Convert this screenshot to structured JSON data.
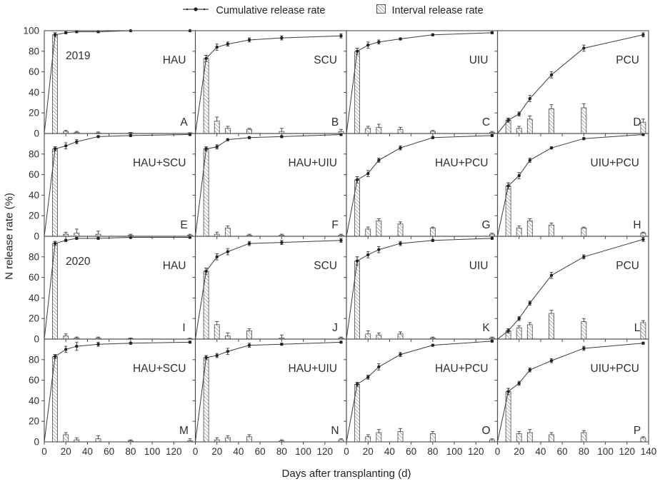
{
  "legend": {
    "cumulative": "Cumulative release rate",
    "interval": "Interval release rate"
  },
  "axes": {
    "ylabel": "N release rate (%)",
    "xlabel": "Days after transplanting (d)",
    "x_range": [
      0,
      140
    ],
    "y_range": [
      0,
      100
    ],
    "x_ticks": [
      0,
      20,
      40,
      60,
      80,
      100,
      120,
      140
    ],
    "y_ticks": [
      0,
      20,
      40,
      60,
      80,
      100
    ],
    "note_x_labels": "140 labeled only under last column; y=100 labeled only on top row",
    "grid": false
  },
  "colors": {
    "line": "#3c3c3c",
    "marker": "#222222",
    "border": "#4a4a4a",
    "hatch": "#555555",
    "text": "#2f2f2f"
  },
  "chart_data": {
    "type": "line+bar small-multiples (4x4 grid)",
    "x": [
      10,
      20,
      30,
      50,
      80,
      135
    ],
    "series_names": [
      "Cumulative release rate",
      "Interval release rate"
    ],
    "panels": [
      {
        "letter": "A",
        "treatment": "HAU",
        "year_label": "2019",
        "cumulative": [
          96,
          98,
          99,
          99,
          100,
          100
        ],
        "interval": [
          96,
          2,
          1,
          0.5,
          0.5,
          0.3
        ],
        "err_cum": [
          2,
          1,
          1,
          1,
          1,
          1
        ],
        "err_int": [
          2,
          1,
          1,
          1,
          0.5,
          0.5
        ]
      },
      {
        "letter": "B",
        "treatment": "SCU",
        "year_label": "",
        "cumulative": [
          73,
          84,
          87,
          91,
          93,
          95
        ],
        "interval": [
          73,
          12,
          5,
          4,
          2,
          2
        ],
        "err_cum": [
          3,
          3,
          2,
          2,
          2,
          2
        ],
        "err_int": [
          3,
          4,
          2,
          1,
          3,
          2
        ]
      },
      {
        "letter": "C",
        "treatment": "UIU",
        "year_label": "",
        "cumulative": [
          80,
          86,
          89,
          92,
          96,
          98
        ],
        "interval": [
          80,
          5,
          6,
          4,
          2,
          1
        ],
        "err_cum": [
          3,
          3,
          2,
          1,
          1,
          1
        ],
        "err_int": [
          3,
          2,
          3,
          2,
          1,
          1
        ]
      },
      {
        "letter": "D",
        "treatment": "PCU",
        "year_label": "",
        "cumulative": [
          13,
          19,
          34,
          57,
          83,
          96
        ],
        "interval": [
          13,
          5,
          14,
          24,
          25,
          11
        ],
        "err_cum": [
          2,
          2,
          3,
          3,
          3,
          2
        ],
        "err_int": [
          2,
          2,
          3,
          4,
          4,
          3
        ]
      },
      {
        "letter": "E",
        "treatment": "HAU+SCU",
        "year_label": "",
        "cumulative": [
          85,
          88,
          92,
          97,
          98,
          99
        ],
        "interval": [
          85,
          2,
          3,
          2,
          1,
          1
        ],
        "err_cum": [
          2,
          3,
          2,
          1,
          1,
          1
        ],
        "err_int": [
          2,
          2,
          4,
          3,
          1,
          1
        ]
      },
      {
        "letter": "F",
        "treatment": "HAU+UIU",
        "year_label": "",
        "cumulative": [
          85,
          87,
          94,
          96,
          97,
          99
        ],
        "interval": [
          85,
          2,
          8,
          1,
          1,
          1
        ],
        "err_cum": [
          2,
          2,
          1,
          1,
          1,
          1
        ],
        "err_int": [
          2,
          2,
          2,
          1,
          1,
          1
        ]
      },
      {
        "letter": "G",
        "treatment": "HAU+PCU",
        "year_label": "",
        "cumulative": [
          55,
          61,
          74,
          86,
          96,
          98
        ],
        "interval": [
          55,
          7,
          15,
          12,
          8,
          2
        ],
        "err_cum": [
          3,
          3,
          2,
          2,
          1,
          1
        ],
        "err_int": [
          3,
          2,
          2,
          2,
          1,
          1
        ]
      },
      {
        "letter": "H",
        "treatment": "UIU+PCU",
        "year_label": "",
        "cumulative": [
          49,
          59,
          74,
          86,
          95,
          99
        ],
        "interval": [
          49,
          8,
          15,
          11,
          8,
          3
        ],
        "err_cum": [
          3,
          3,
          2,
          1,
          1,
          1
        ],
        "err_int": [
          3,
          2,
          2,
          2,
          1,
          1
        ]
      },
      {
        "letter": "I",
        "treatment": "HAU",
        "year_label": "2020",
        "cumulative": [
          93,
          96,
          98,
          98,
          99,
          99
        ],
        "interval": [
          93,
          3,
          1,
          1,
          0.5,
          0.3
        ],
        "err_cum": [
          2,
          1,
          1,
          1,
          1,
          1
        ],
        "err_int": [
          2,
          2,
          1,
          1,
          0.5,
          0.5
        ]
      },
      {
        "letter": "J",
        "treatment": "SCU",
        "year_label": "",
        "cumulative": [
          66,
          80,
          85,
          93,
          94,
          96
        ],
        "interval": [
          66,
          14,
          3,
          8,
          1,
          1
        ],
        "err_cum": [
          3,
          3,
          3,
          2,
          2,
          2
        ],
        "err_int": [
          3,
          3,
          3,
          2,
          3,
          1
        ]
      },
      {
        "letter": "K",
        "treatment": "UIU",
        "year_label": "",
        "cumulative": [
          76,
          82,
          87,
          93,
          96,
          98
        ],
        "interval": [
          76,
          5,
          4,
          5,
          1,
          1
        ],
        "err_cum": [
          4,
          3,
          3,
          2,
          1,
          1
        ],
        "err_int": [
          4,
          3,
          2,
          2,
          1,
          1
        ]
      },
      {
        "letter": "L",
        "treatment": "PCU",
        "year_label": "",
        "cumulative": [
          8,
          20,
          35,
          62,
          80,
          97
        ],
        "interval": [
          8,
          11,
          14,
          25,
          17,
          16
        ],
        "err_cum": [
          2,
          2,
          2,
          3,
          2,
          2
        ],
        "err_int": [
          2,
          2,
          2,
          3,
          3,
          2
        ]
      },
      {
        "letter": "M",
        "treatment": "HAU+SCU",
        "year_label": "",
        "cumulative": [
          83,
          90,
          93,
          95,
          96,
          97
        ],
        "interval": [
          83,
          7,
          2,
          3,
          1,
          1
        ],
        "err_cum": [
          2,
          3,
          4,
          2,
          1,
          1
        ],
        "err_int": [
          2,
          2,
          2,
          3,
          1,
          2
        ]
      },
      {
        "letter": "N",
        "treatment": "HAU+UIU",
        "year_label": "",
        "cumulative": [
          82,
          84,
          88,
          94,
          95,
          97
        ],
        "interval": [
          82,
          2,
          4,
          5,
          1,
          2
        ],
        "err_cum": [
          2,
          2,
          3,
          2,
          1,
          1
        ],
        "err_int": [
          2,
          2,
          2,
          2,
          1,
          1
        ]
      },
      {
        "letter": "O",
        "treatment": "HAU+PCU",
        "year_label": "",
        "cumulative": [
          56,
          63,
          73,
          85,
          94,
          98
        ],
        "interval": [
          56,
          5,
          9,
          10,
          8,
          2
        ],
        "err_cum": [
          2,
          2,
          3,
          2,
          1,
          1
        ],
        "err_int": [
          2,
          2,
          3,
          3,
          2,
          1
        ]
      },
      {
        "letter": "P",
        "treatment": "UIU+PCU",
        "year_label": "",
        "cumulative": [
          49,
          57,
          70,
          79,
          91,
          96
        ],
        "interval": [
          49,
          8,
          9,
          7,
          9,
          4
        ],
        "err_cum": [
          3,
          2,
          2,
          2,
          2,
          1
        ],
        "err_int": [
          3,
          2,
          3,
          2,
          2,
          1
        ]
      }
    ]
  }
}
